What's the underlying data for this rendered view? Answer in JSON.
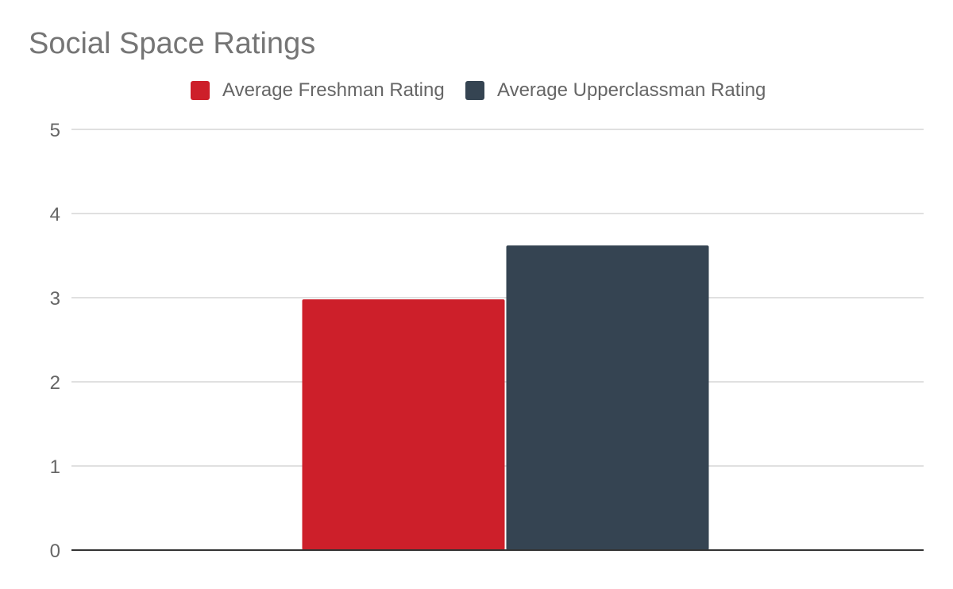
{
  "chart_data": {
    "type": "bar",
    "title": "Social Space Ratings",
    "xlabel": "",
    "ylabel": "",
    "categories": [
      ""
    ],
    "series": [
      {
        "name": "Average Freshman Rating",
        "values": [
          2.98
        ],
        "color": "#cd1f2a"
      },
      {
        "name": "Average Upperclassman Rating",
        "values": [
          3.62
        ],
        "color": "#354452"
      }
    ],
    "ylim": [
      0,
      5
    ],
    "yticks": [
      0,
      1,
      2,
      3,
      4,
      5
    ],
    "grid": true,
    "legend_position": "top-center"
  }
}
